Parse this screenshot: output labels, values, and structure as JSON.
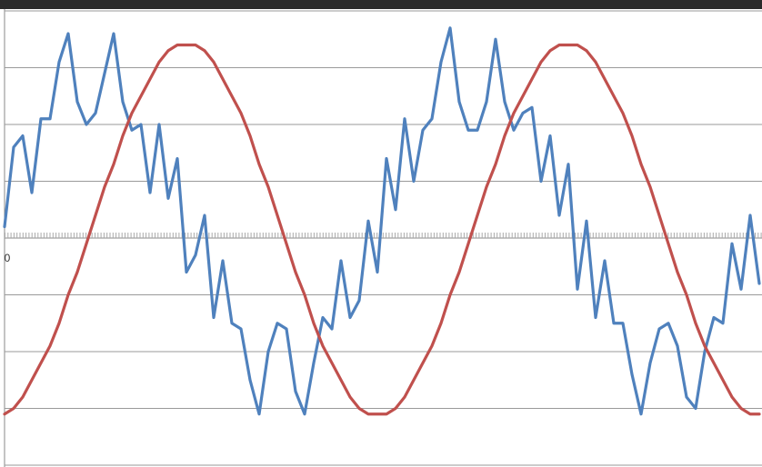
{
  "chart_data": {
    "type": "line",
    "x": [
      0,
      1,
      2,
      3,
      4,
      5,
      6,
      7,
      8,
      9,
      10,
      11,
      12,
      13,
      14,
      15,
      16,
      17,
      18,
      19,
      20,
      21,
      22,
      23,
      24,
      25,
      26,
      27,
      28,
      29,
      30,
      31,
      32,
      33,
      34,
      35,
      36,
      37,
      38,
      39,
      40,
      41,
      42,
      43,
      44,
      45,
      46,
      47,
      48,
      49,
      50,
      51,
      52,
      53,
      54,
      55,
      56,
      57,
      58,
      59,
      60,
      61,
      62,
      63,
      64,
      65,
      66,
      67,
      68,
      69,
      70,
      71,
      72,
      73,
      74,
      75,
      76,
      77,
      78,
      79,
      80,
      81,
      82,
      83
    ],
    "series": [
      {
        "color": "#4f81bd",
        "values": [
          0.2,
          1.6,
          1.8,
          0.8,
          2.1,
          2.1,
          3.1,
          3.6,
          2.4,
          2.0,
          2.2,
          2.9,
          3.6,
          2.4,
          1.9,
          2.0,
          0.8,
          2.0,
          0.7,
          1.4,
          -0.6,
          -0.3,
          0.4,
          -1.4,
          -0.4,
          -1.5,
          -1.6,
          -2.5,
          -3.1,
          -2.0,
          -1.5,
          -1.6,
          -2.7,
          -3.1,
          -2.2,
          -1.4,
          -1.6,
          -0.4,
          -1.4,
          -1.1,
          0.3,
          -0.6,
          1.4,
          0.5,
          2.1,
          1.0,
          1.9,
          2.1,
          3.1,
          3.7,
          2.4,
          1.9,
          1.9,
          2.4,
          3.5,
          2.4,
          1.9,
          2.2,
          2.3,
          1.0,
          1.8,
          0.4,
          1.3,
          -0.9,
          0.3,
          -1.4,
          -0.4,
          -1.5,
          -1.5,
          -2.4,
          -3.1,
          -2.2,
          -1.6,
          -1.5,
          -1.9,
          -2.8,
          -3.0,
          -2.0,
          -1.4,
          -1.5,
          -0.1,
          -0.9,
          0.4,
          -0.8
        ]
      },
      {
        "color": "#c0504d",
        "values": [
          -3.1,
          -3.0,
          -2.8,
          -2.5,
          -2.2,
          -1.9,
          -1.5,
          -1.0,
          -0.6,
          -0.1,
          0.4,
          0.9,
          1.3,
          1.8,
          2.2,
          2.5,
          2.8,
          3.1,
          3.3,
          3.4,
          3.4,
          3.4,
          3.3,
          3.1,
          2.8,
          2.5,
          2.2,
          1.8,
          1.3,
          0.9,
          0.4,
          -0.1,
          -0.6,
          -1.0,
          -1.5,
          -1.9,
          -2.2,
          -2.5,
          -2.8,
          -3.0,
          -3.1,
          -3.1,
          -3.1,
          -3.0,
          -2.8,
          -2.5,
          -2.2,
          -1.9,
          -1.5,
          -1.0,
          -0.6,
          -0.1,
          0.4,
          0.9,
          1.3,
          1.8,
          2.2,
          2.5,
          2.8,
          3.1,
          3.3,
          3.4,
          3.4,
          3.4,
          3.3,
          3.1,
          2.8,
          2.5,
          2.2,
          1.8,
          1.3,
          0.9,
          0.4,
          -0.1,
          -0.6,
          -1.0,
          -1.5,
          -1.9,
          -2.2,
          -2.5,
          -2.8,
          -3.0,
          -3.1,
          -3.1
        ]
      }
    ],
    "xlim": [
      0,
      83.3
    ],
    "xticks": [
      0
    ],
    "ylim": [
      -4,
      4
    ],
    "yticks": [
      -4,
      -3,
      -2,
      -1,
      0,
      1,
      2,
      3,
      4
    ],
    "grid": true
  }
}
